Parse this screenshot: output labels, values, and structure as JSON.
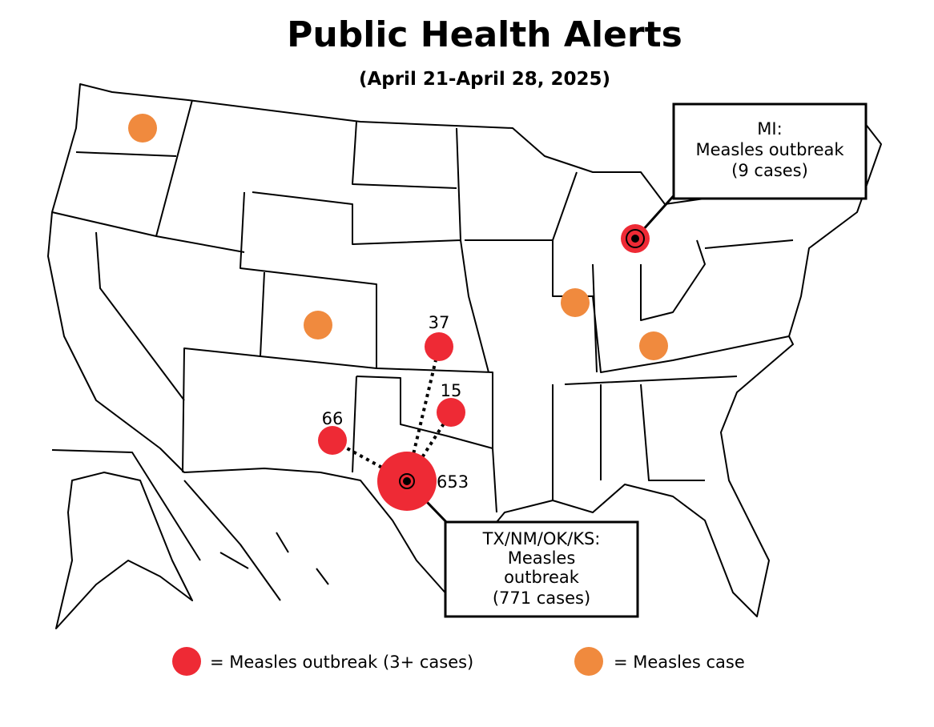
{
  "header": {
    "title": "Public Health Alerts",
    "subtitle": "(April 21-April 28, 2025)"
  },
  "callouts": [
    {
      "lines": [
        "MI:",
        "Measles outbreak",
        "(9 cases)"
      ]
    },
    {
      "lines": [
        "TX/NM/OK/KS:",
        "Measles",
        "outbreak",
        "(771 cases)"
      ]
    }
  ],
  "labels": [
    37,
    15,
    66,
    653
  ],
  "legend": [
    "= Measles outbreak (3+ cases)",
    "= Measles case"
  ],
  "colors": {
    "outbreak": "#ee2a35",
    "case": "#f08a3e"
  }
}
